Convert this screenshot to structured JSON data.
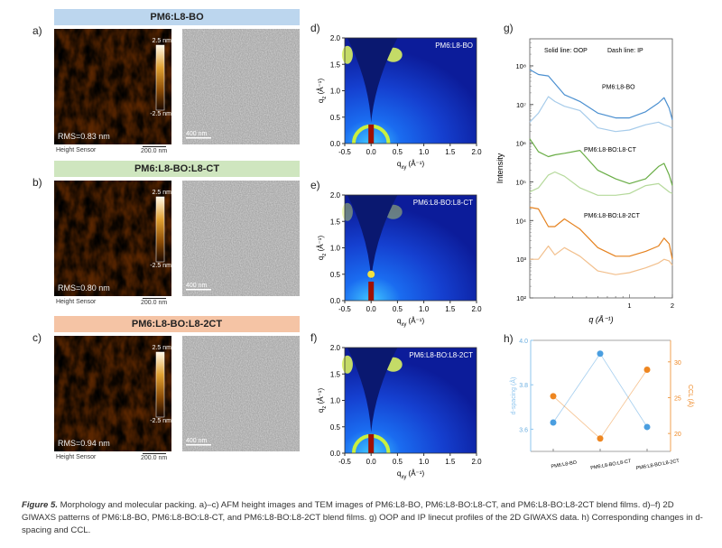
{
  "panels_afm_tem": [
    {
      "label": "a)",
      "title": "PM6:L8-BO",
      "banner_color": "#bcd6ee",
      "rms": "RMS=0.83 nm",
      "cbar_top": "2.5 nm",
      "cbar_bottom": "-2.5 nm",
      "height_sensor": "Height Sensor",
      "afm_scale": "200.0 nm",
      "tem_scale": "400 nm"
    },
    {
      "label": "b)",
      "title": "PM6:L8-BO:L8-CT",
      "banner_color": "#cfe6bf",
      "rms": "RMS=0.80 nm",
      "cbar_top": "2.5 nm",
      "cbar_bottom": "-2.5 nm",
      "height_sensor": "Height Sensor",
      "afm_scale": "200.0 nm",
      "tem_scale": "400 nm"
    },
    {
      "label": "c)",
      "title": "PM6:L8-BO:L8-2CT",
      "banner_color": "#f5c4a5",
      "rms": "RMS=0.94 nm",
      "cbar_top": "2.5 nm",
      "cbar_bottom": "-2.5 nm",
      "height_sensor": "Height Sensor",
      "afm_scale": "200.0 nm",
      "tem_scale": "400 nm"
    }
  ],
  "panels_giwaxs": [
    {
      "label": "d)",
      "sample": "PM6:L8-BO"
    },
    {
      "label": "e)",
      "sample": "PM6:L8-BO:L8-CT"
    },
    {
      "label": "f)",
      "sample": "PM6:L8-BO:L8-2CT"
    }
  ],
  "giwaxs_axes": {
    "xlabel": "q",
    "xlabel_sub": "xy",
    "ylabel": "q",
    "ylabel_sub": "z",
    "unit": " (Å⁻¹)",
    "xlim": [
      -0.5,
      2.0
    ],
    "ylim": [
      0,
      2.0
    ],
    "xticks": [
      "-0.5",
      "0.0",
      "0.5",
      "1.0",
      "1.5",
      "2.0"
    ],
    "yticks": [
      "0.0",
      "0.5",
      "1.0",
      "1.5",
      "2.0"
    ]
  },
  "chart_data": [
    {
      "panel": "g)",
      "type": "line",
      "annotation": "Solid line: OOP",
      "annotation2": "Dash line: IP",
      "xlabel": "q (Å⁻¹)",
      "ylabel": "Intensity",
      "xscale": "log",
      "yscale": "log",
      "xlim": [
        0.2,
        2.0
      ],
      "ylim": [
        100,
        500000000
      ],
      "xtick_labels": [
        "1",
        "2"
      ],
      "ytick_labels": [
        "10²",
        "10³",
        "10⁴",
        "10⁵",
        "10⁶",
        "10⁷",
        "10⁸"
      ],
      "group_labels": [
        "PM6:L8-BO",
        "PM6:L8-BO:L8-CT",
        "PM6:L8-BO:L8-2CT"
      ],
      "x": [
        0.2,
        0.23,
        0.27,
        0.3,
        0.35,
        0.45,
        0.6,
        0.8,
        1.0,
        1.3,
        1.6,
        1.75,
        1.9,
        2.0
      ],
      "series": [
        {
          "group": "PM6:L8-BO",
          "direction": "OOP",
          "color": "#4a8fd0",
          "values": [
            80000000,
            60000000,
            55000000,
            35000000,
            18000000,
            12000000,
            6000000,
            4500000,
            4500000,
            6500000,
            11000000,
            15000000,
            8000000,
            4000000
          ]
        },
        {
          "group": "PM6:L8-BO",
          "direction": "IP",
          "color": "#a6cbea",
          "values": [
            3500000,
            6000000,
            16000000,
            12000000,
            9000000,
            7000000,
            2500000,
            2000000,
            2200000,
            3000000,
            3500000,
            3000000,
            2700000,
            2400000
          ]
        },
        {
          "group": "PM6:L8-BO:L8-CT",
          "direction": "OOP",
          "color": "#69ad45",
          "values": [
            1300000,
            600000,
            450000,
            500000,
            550000,
            650000,
            200000,
            120000,
            90000,
            120000,
            250000,
            300000,
            150000,
            80000
          ]
        },
        {
          "group": "PM6:L8-BO:L8-CT",
          "direction": "IP",
          "color": "#b5d99b",
          "values": [
            55000,
            70000,
            150000,
            180000,
            140000,
            70000,
            45000,
            45000,
            50000,
            80000,
            90000,
            70000,
            55000,
            50000
          ]
        },
        {
          "group": "PM6:L8-BO:L8-2CT",
          "direction": "OOP",
          "color": "#e5821f",
          "values": [
            22000,
            20000,
            7000,
            7000,
            11000,
            6000,
            2000,
            1200,
            1200,
            1600,
            2200,
            3500,
            2500,
            1000
          ]
        },
        {
          "group": "PM6:L8-BO:L8-2CT",
          "direction": "IP",
          "color": "#f2bf8c",
          "values": [
            1000,
            1000,
            2200,
            1300,
            2000,
            1200,
            500,
            400,
            450,
            600,
            800,
            1000,
            900,
            700
          ]
        }
      ]
    },
    {
      "panel": "h)",
      "type": "line",
      "categories": [
        "PM6:L8-BO",
        "PM6:L8-BO:L8-CT",
        "PM6:L8-BO:L8-2CT"
      ],
      "ylabel_left": "d-spacing (Å)",
      "ylabel_right": "CCL (Å)",
      "ylim_left": [
        3.5,
        4.0
      ],
      "ylim_right": [
        17.5,
        33
      ],
      "yticks_left": [
        "3.6",
        "3.8",
        "4.0"
      ],
      "yticks_right": [
        "20",
        "25",
        "30"
      ],
      "series": [
        {
          "name": "d-spacing (Å)",
          "axis": "left",
          "color": "#4a9ee0",
          "values": [
            3.63,
            3.94,
            3.61
          ]
        },
        {
          "name": "CCL (Å)",
          "axis": "right",
          "color": "#ee8620",
          "values": [
            25.2,
            19.3,
            28.9
          ]
        }
      ]
    }
  ],
  "caption": {
    "lead": "Figure 5.",
    "text": " Morphology and molecular packing. a)–c) AFM height images and TEM images of PM6:L8-BO, PM6:L8-BO:L8-CT, and PM6:L8-BO:L8-2CT blend films. d)–f) 2D GIWAXS patterns of PM6:L8-BO, PM6:L8-BO:L8-CT, and PM6:L8-BO:L8-2CT blend films. g) OOP and IP linecut profiles of the 2D GIWAXS data. h) Corresponding changes in d-spacing and CCL."
  }
}
